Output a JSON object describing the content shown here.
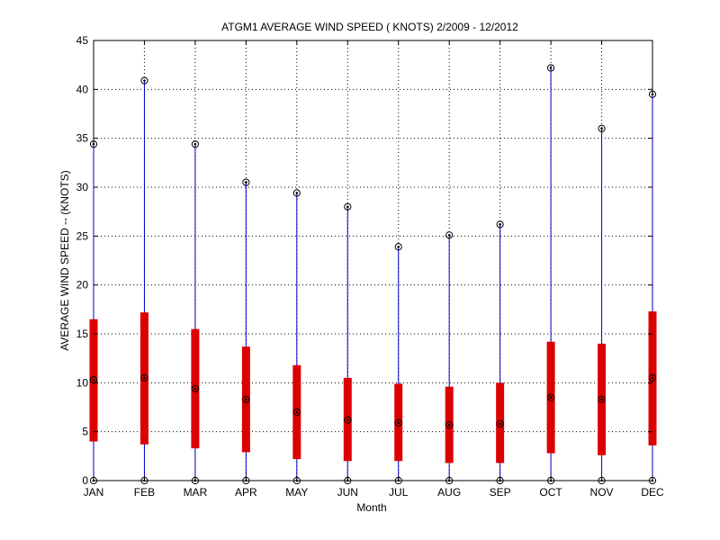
{
  "chart_data": {
    "type": "boxplot",
    "title": "ATGM1  AVERAGE WIND SPEED ( KNOTS) 2/2009 - 12/2012",
    "xlabel": "Month",
    "ylabel": "AVERAGE WIND SPEED -- (KNOTS)",
    "ylim": [
      0,
      45
    ],
    "yticks": [
      0,
      5,
      10,
      15,
      20,
      25,
      30,
      35,
      40,
      45
    ],
    "grid": true,
    "categories": [
      "JAN",
      "FEB",
      "MAR",
      "APR",
      "MAY",
      "JUN",
      "JUL",
      "AUG",
      "SEP",
      "OCT",
      "NOV",
      "DEC"
    ],
    "series": [
      {
        "min": [
          0,
          0,
          0,
          0,
          0,
          0,
          0,
          0,
          0,
          0,
          0,
          0
        ],
        "q1": [
          4.0,
          3.7,
          3.3,
          2.9,
          2.2,
          2.0,
          2.0,
          1.8,
          1.8,
          2.8,
          2.6,
          3.6
        ],
        "median": [
          10.3,
          10.5,
          9.4,
          8.3,
          7.0,
          6.2,
          5.9,
          5.7,
          5.8,
          8.5,
          8.3,
          10.5
        ],
        "q3": [
          16.5,
          17.2,
          15.5,
          13.7,
          11.8,
          10.5,
          9.9,
          9.6,
          10.0,
          14.2,
          14.0,
          17.3
        ],
        "max": [
          34.4,
          40.9,
          34.4,
          30.5,
          29.4,
          28.0,
          23.9,
          25.1,
          26.2,
          42.2,
          36.0,
          39.5
        ]
      }
    ],
    "colors": {
      "box": "#dd0000",
      "whisker": "#0000cc",
      "marker": "#000000"
    }
  }
}
